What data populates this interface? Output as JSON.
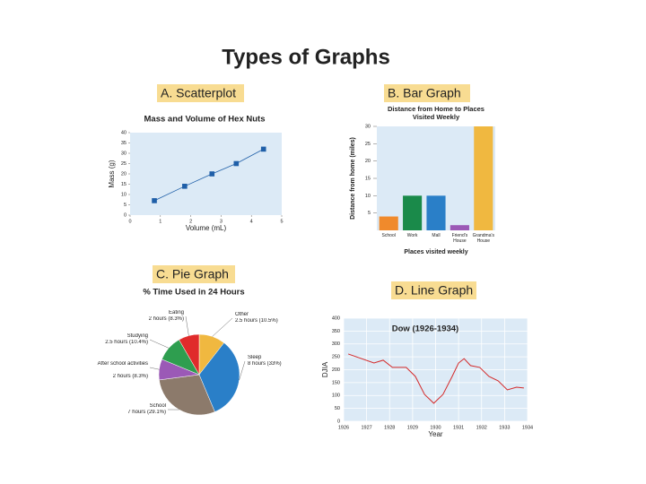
{
  "title": "Types of Graphs",
  "chart_data": [
    {
      "type": "scatter",
      "label": "A. Scatterplot",
      "title": "Mass and Volume of Hex Nuts",
      "x_label": "Volume (mL)",
      "y_label": "Mass (g)",
      "x": [
        0.8,
        1.8,
        2.7,
        3.5,
        4.4
      ],
      "values": [
        7,
        14,
        20,
        25,
        32
      ],
      "color": "#1f5fa8",
      "line": true,
      "xlim": [
        0,
        5
      ],
      "xticks": [
        0,
        1,
        2,
        3,
        4,
        5
      ],
      "ylim": [
        0,
        40
      ],
      "yticks": [
        0,
        5,
        10,
        15,
        20,
        25,
        30,
        35,
        40
      ],
      "grid": false
    },
    {
      "type": "bar",
      "label": "B. Bar Graph",
      "title": "Distance from Home to Places Visited Weekly",
      "x_label": "Places visited weekly",
      "y_label": "Distance from home (miles)",
      "categories": [
        "School",
        "Work",
        "Mall",
        "Friend's House",
        "Grandma's House"
      ],
      "values": [
        4,
        10,
        10,
        1.5,
        30
      ],
      "colors": [
        "#f08a2c",
        "#1a8a4a",
        "#2a7fc8",
        "#9b59b6",
        "#f0b840"
      ],
      "ylim": [
        0,
        30
      ],
      "yticks": [
        5,
        10,
        15,
        20,
        25,
        30
      ],
      "grid": false
    },
    {
      "type": "pie",
      "label": "C. Pie Graph",
      "title": "% Time Used in 24 Hours",
      "categories": [
        "Other",
        "Sleep",
        "School",
        "After school activities",
        "Studying",
        "Eating"
      ],
      "values": [
        10.5,
        33,
        29.1,
        8.3,
        10.4,
        8.3
      ],
      "value_labels": [
        "2.5 hours (10.5%)",
        "8 hours (33%)",
        "7 hours (29.1%)",
        "2 hours (8.3%)",
        "2.5 hours (10.4%)",
        "2 hours (8.3%)"
      ],
      "colors": [
        "#f0b840",
        "#2a7fc8",
        "#8c7a6b",
        "#9b59b6",
        "#2e9e4f",
        "#e02b2b"
      ]
    },
    {
      "type": "line",
      "label": "D. Line Graph",
      "title": "Dow (1926-1934)",
      "x_label": "Year",
      "y_label": "DJIA",
      "x": [
        1926.2,
        1927.32,
        1927.72,
        1928.12,
        1928.72,
        1929.12,
        1929.52,
        1929.92,
        1930.32,
        1930.72,
        1931.0,
        1931.24,
        1931.52,
        1931.92,
        1932.32,
        1932.72,
        1933.12,
        1933.52,
        1933.84
      ],
      "values": [
        261,
        226,
        237,
        209,
        209,
        174,
        104,
        70,
        104,
        174,
        226,
        243,
        216,
        209,
        174,
        157,
        122,
        132,
        129
      ],
      "color": "#d42a2a",
      "xlim": [
        1926,
        1934
      ],
      "xticks": [
        1926,
        1927,
        1928,
        1929,
        1930,
        1931,
        1932,
        1933,
        1934
      ],
      "ylim": [
        0,
        400
      ],
      "yticks": [
        0,
        50,
        100,
        150,
        200,
        250,
        300,
        350,
        400
      ],
      "grid": true
    }
  ]
}
